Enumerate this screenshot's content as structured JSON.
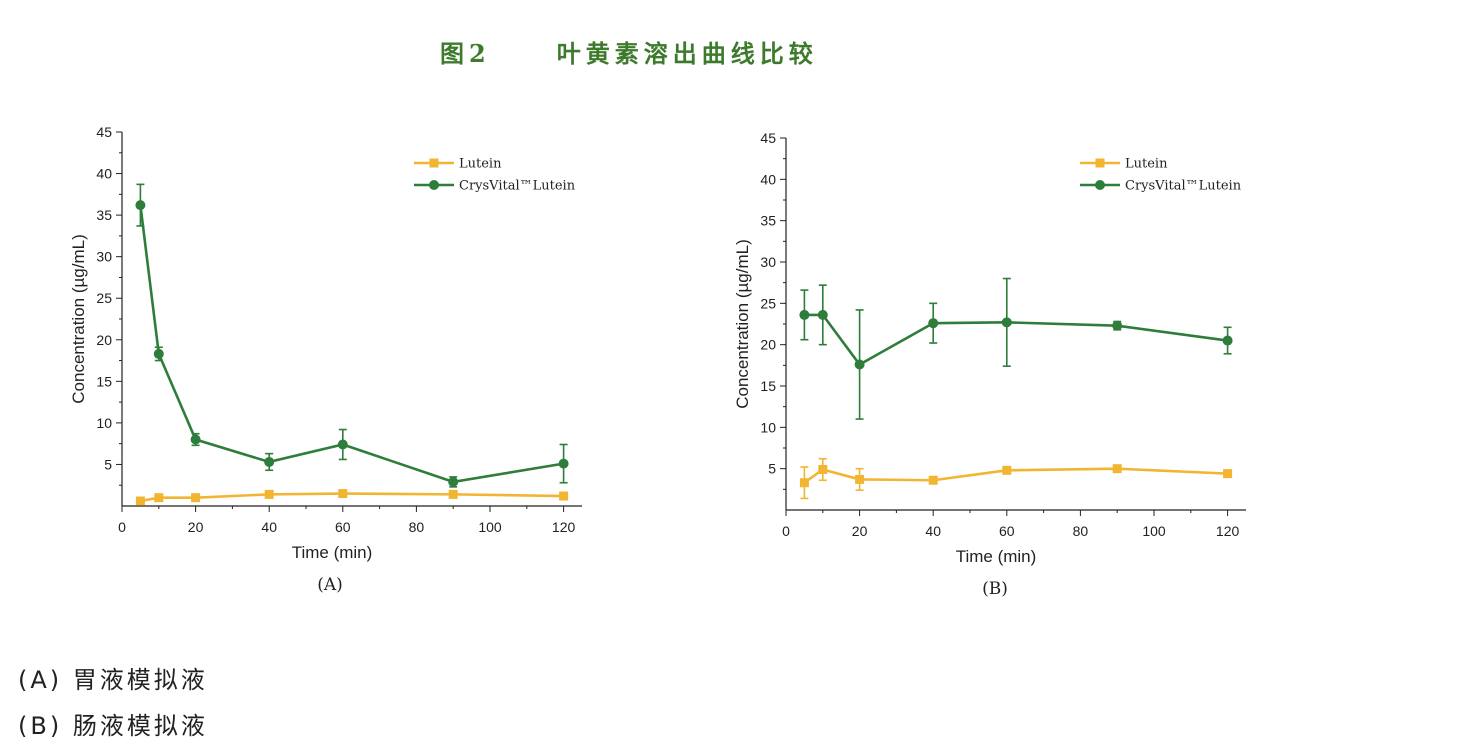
{
  "figure": {
    "number": "图2",
    "title": "叶黄素溶出曲线比较",
    "title_color": "#3e7a2c"
  },
  "captions": [
    "(A) 胃液模拟液",
    "(B) 肠液模拟液"
  ],
  "colors": {
    "lutein": "#f2b532",
    "crysvital": "#2e7d3a"
  },
  "chart_data": [
    {
      "type": "line",
      "panel_label": "(A)",
      "xlabel": "Time (min)",
      "ylabel": "Concentration (µg/mL)",
      "xlim": [
        0,
        125
      ],
      "ylim": [
        0,
        45
      ],
      "xticks": [
        0,
        20,
        40,
        60,
        80,
        100,
        120
      ],
      "yticks": [
        5,
        10,
        15,
        20,
        25,
        30,
        35,
        40,
        45
      ],
      "legend_position": "top-right",
      "series": [
        {
          "name": "Lutein",
          "marker": "square",
          "x": [
            5,
            10,
            20,
            40,
            60,
            90,
            120
          ],
          "y": [
            0.6,
            1.0,
            1.0,
            1.4,
            1.5,
            1.4,
            1.2
          ],
          "err": [
            0.2,
            0.2,
            0.2,
            0.2,
            0.2,
            0.2,
            0.2
          ]
        },
        {
          "name": "CrysVital™Lutein",
          "marker": "circle",
          "x": [
            5,
            10,
            20,
            40,
            60,
            90,
            120
          ],
          "y": [
            36.2,
            18.3,
            8.0,
            5.3,
            7.4,
            2.9,
            5.1
          ],
          "err": [
            2.5,
            0.8,
            0.7,
            1.0,
            1.8,
            0.6,
            2.3
          ]
        }
      ]
    },
    {
      "type": "line",
      "panel_label": "(B)",
      "xlabel": "Time (min)",
      "ylabel": "Concentration (µg/mL)",
      "xlim": [
        0,
        125
      ],
      "ylim": [
        0,
        45
      ],
      "xticks": [
        0,
        20,
        40,
        60,
        80,
        100,
        120
      ],
      "yticks": [
        5,
        10,
        15,
        20,
        25,
        30,
        35,
        40,
        45
      ],
      "legend_position": "top-right",
      "series": [
        {
          "name": "Lutein",
          "marker": "square",
          "x": [
            5,
            10,
            20,
            40,
            60,
            90,
            120
          ],
          "y": [
            3.3,
            4.9,
            3.7,
            3.6,
            4.8,
            5.0,
            4.4
          ],
          "err": [
            1.9,
            1.3,
            1.3,
            0.2,
            0.2,
            0.2,
            0.2
          ]
        },
        {
          "name": "CrysVital™Lutein",
          "marker": "circle",
          "x": [
            5,
            10,
            20,
            40,
            60,
            90,
            120
          ],
          "y": [
            23.6,
            23.6,
            17.6,
            22.6,
            22.7,
            22.3,
            20.5
          ],
          "err": [
            3.0,
            3.6,
            6.6,
            2.4,
            5.3,
            0.5,
            1.6
          ]
        }
      ]
    }
  ]
}
